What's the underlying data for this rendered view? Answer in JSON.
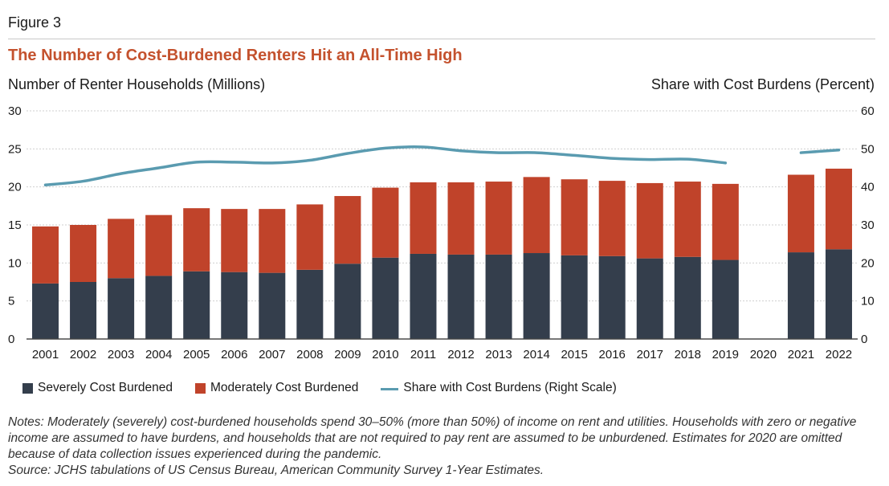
{
  "figure_label": "Figure 3",
  "title": "The Number of Cost-Burdened Renters Hit an All-Time High",
  "left_axis_title": "Number of Renter Households (Millions)",
  "right_axis_title": "Share with Cost Burdens (Percent)",
  "colors": {
    "severe": "#343e4c",
    "moderate": "#c0432a",
    "share": "#5a9bb0",
    "title": "#c4522e"
  },
  "legend": {
    "severe": "Severely Cost Burdened",
    "moderate": "Moderately Cost Burdened",
    "share": "Share with Cost Burdens (Right Scale)"
  },
  "notes": {
    "line1": "Notes: Moderately (severely) cost-burdened households spend 30–50% (more than 50%) of income on rent and utilities. Households with zero or negative income are assumed to have burdens, and households that are not required to pay rent are assumed to be unburdened. Estimates for 2020 are omitted because of data collection issues experienced during the pandemic.",
    "line2": "Source: JCHS tabulations of US Census Bureau, American Community Survey 1-Year Estimates."
  },
  "chart_data": {
    "type": "bar",
    "stacked": true,
    "categories": [
      "2001",
      "2002",
      "2003",
      "2004",
      "2005",
      "2006",
      "2007",
      "2008",
      "2009",
      "2010",
      "2011",
      "2012",
      "2013",
      "2014",
      "2015",
      "2016",
      "2017",
      "2018",
      "2019",
      "2020",
      "2021",
      "2022"
    ],
    "series": [
      {
        "name": "Severely Cost Burdened",
        "axis": "left",
        "values": [
          7.3,
          7.5,
          8.0,
          8.3,
          8.9,
          8.8,
          8.7,
          9.1,
          9.9,
          10.7,
          11.2,
          11.1,
          11.1,
          11.3,
          11.0,
          10.9,
          10.6,
          10.8,
          10.4,
          null,
          11.4,
          11.8
        ]
      },
      {
        "name": "Moderately Cost Burdened",
        "axis": "left",
        "values": [
          7.5,
          7.5,
          7.8,
          8.0,
          8.3,
          8.3,
          8.4,
          8.6,
          8.9,
          9.2,
          9.4,
          9.5,
          9.6,
          10.0,
          10.0,
          9.9,
          9.9,
          9.9,
          10.0,
          null,
          10.2,
          10.6
        ]
      },
      {
        "name": "Share with Cost Burdens (Right Scale)",
        "type": "line",
        "axis": "right",
        "values": [
          40.5,
          41.5,
          43.5,
          45.0,
          46.5,
          46.5,
          46.3,
          47.0,
          48.8,
          50.2,
          50.5,
          49.5,
          49.0,
          49.0,
          48.3,
          47.5,
          47.2,
          47.3,
          46.3,
          null,
          49.0,
          49.7
        ]
      }
    ],
    "y_left": {
      "min": 0,
      "max": 30,
      "ticks": [
        "0",
        "5",
        "10",
        "15",
        "20",
        "25",
        "30"
      ]
    },
    "y_right": {
      "min": 0,
      "max": 60,
      "ticks": [
        "0",
        "10",
        "20",
        "30",
        "40",
        "50",
        "60"
      ]
    },
    "grid": true,
    "legend_position": "bottom-left"
  }
}
